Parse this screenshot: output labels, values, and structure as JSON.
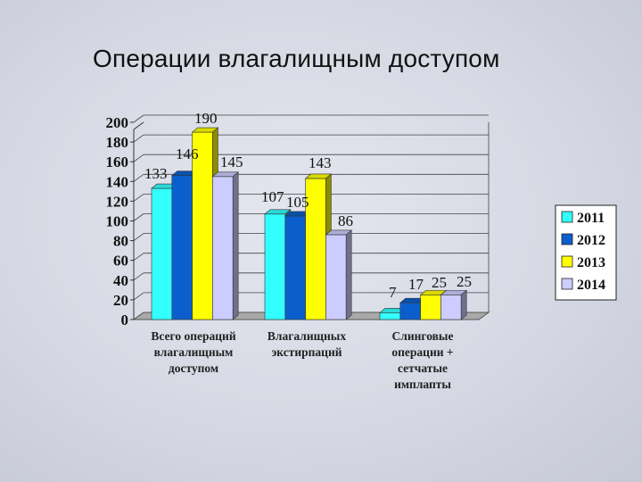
{
  "slide": {
    "title": "Операции влагалищным доступом"
  },
  "chart_data": {
    "type": "bar",
    "title": "",
    "categories": [
      [
        "Всего операций",
        "влагалищным",
        "доступом"
      ],
      [
        "Влагалищных",
        "экстирпаций"
      ],
      [
        "Слинговые",
        "операции +",
        "сетчатые",
        "имплапты"
      ]
    ],
    "series": [
      {
        "name": "2011",
        "values": [
          133,
          107,
          7
        ],
        "color": "#33ffff"
      },
      {
        "name": "2012",
        "values": [
          146,
          105,
          17
        ],
        "color": "#0b5fcc"
      },
      {
        "name": "2013",
        "values": [
          190,
          143,
          25
        ],
        "color": "#ffff00"
      },
      {
        "name": "2014",
        "values": [
          145,
          86,
          25
        ],
        "color": "#ccccff"
      }
    ],
    "y_ticks": [
      "0",
      "20",
      "40",
      "60",
      "80",
      "100",
      "120",
      "140",
      "160",
      "180",
      "200"
    ],
    "ylim": [
      0,
      200
    ],
    "grid": true,
    "legend": "right",
    "three_d": true
  }
}
